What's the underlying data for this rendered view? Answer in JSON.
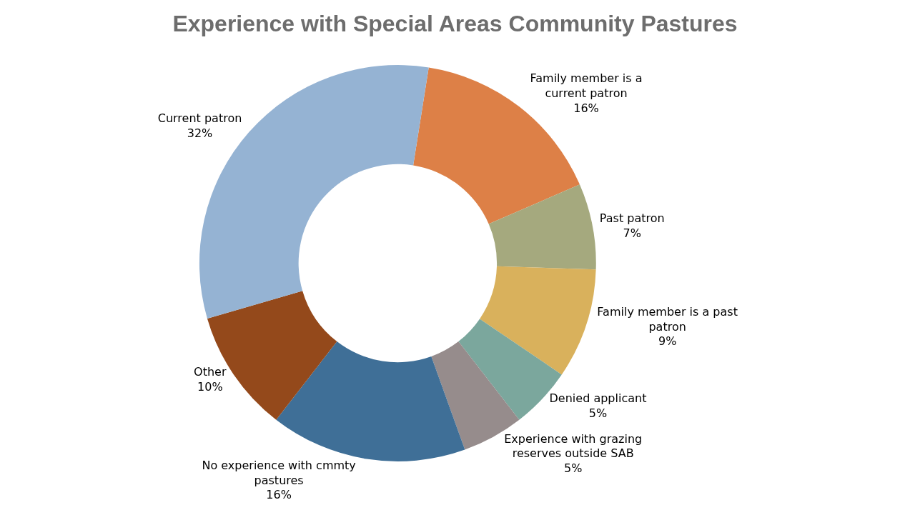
{
  "chart_data": {
    "type": "donut",
    "title": "Experience with Special Areas Community Pastures",
    "categories": [
      "Family member is a current patron",
      "Past patron",
      "Family member is a past patron",
      "Denied applicant",
      "Experience with grazing reserves outside SAB",
      "No experience with cmmty pastures",
      "Other",
      "Current patron"
    ],
    "values": [
      16,
      7,
      9,
      5,
      5,
      16,
      10,
      32
    ],
    "value_labels": [
      "16%",
      "7%",
      "9%",
      "5%",
      "5%",
      "16%",
      "10%",
      "32%"
    ],
    "colors": [
      "#dd8047",
      "#a5a97e",
      "#d9b15c",
      "#7ba79d",
      "#968c8c",
      "#3f6f97",
      "#94491b",
      "#95b3d3"
    ],
    "legend": false
  }
}
